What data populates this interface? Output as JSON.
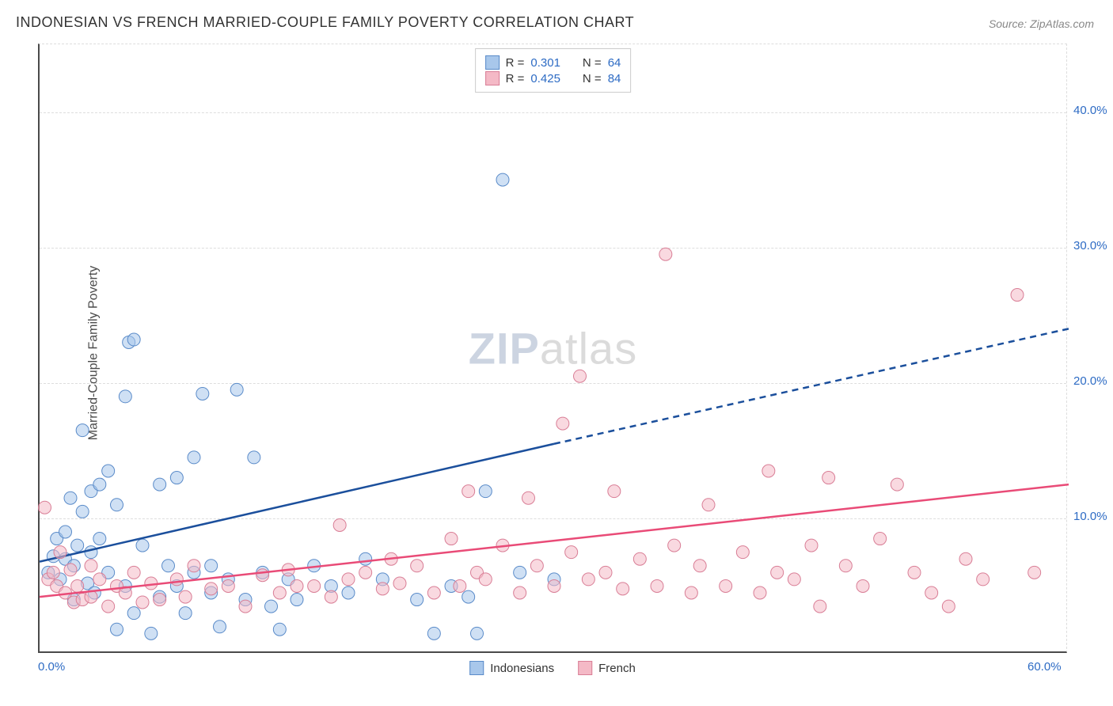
{
  "title": "INDONESIAN VS FRENCH MARRIED-COUPLE FAMILY POVERTY CORRELATION CHART",
  "source": "Source: ZipAtlas.com",
  "ylabel": "Married-Couple Family Poverty",
  "watermark_prefix": "ZIP",
  "watermark_suffix": "atlas",
  "legend_top": {
    "rows": [
      {
        "swatch_fill": "#a8c7eb",
        "swatch_stroke": "#5a8bc9",
        "r_label": "R =",
        "r_val": "0.301",
        "n_label": "N =",
        "n_val": "64"
      },
      {
        "swatch_fill": "#f4b9c6",
        "swatch_stroke": "#d97e96",
        "r_label": "R =",
        "r_val": "0.425",
        "n_label": "N =",
        "n_val": "84"
      }
    ]
  },
  "legend_bottom": {
    "items": [
      {
        "swatch_fill": "#a8c7eb",
        "swatch_stroke": "#5a8bc9",
        "label": "Indonesians"
      },
      {
        "swatch_fill": "#f4b9c6",
        "swatch_stroke": "#d97e96",
        "label": "French"
      }
    ]
  },
  "chart": {
    "type": "scatter",
    "xlim": [
      0,
      60
    ],
    "ylim": [
      0,
      45
    ],
    "x_ticks": [
      0,
      60
    ],
    "x_tick_labels": [
      "0.0%",
      "60.0%"
    ],
    "y_ticks": [
      10,
      20,
      30,
      40
    ],
    "y_tick_labels": [
      "10.0%",
      "20.0%",
      "30.0%",
      "40.0%"
    ],
    "grid_color": "#dddddd",
    "background_color": "#ffffff",
    "marker_radius": 8,
    "marker_opacity": 0.55,
    "series": [
      {
        "name": "Indonesians",
        "fill": "#a8c7eb",
        "stroke": "#5a8bc9",
        "trend": {
          "color": "#1b4f9c",
          "width": 2.5,
          "solid_x": [
            0,
            30
          ],
          "solid_y": [
            6.8,
            15.5
          ],
          "dash_x": [
            30,
            60
          ],
          "dash_y": [
            15.5,
            24.0
          ]
        },
        "points": [
          [
            0.5,
            6.0
          ],
          [
            0.8,
            7.2
          ],
          [
            1.0,
            8.5
          ],
          [
            1.2,
            5.5
          ],
          [
            1.5,
            7.0
          ],
          [
            1.5,
            9.0
          ],
          [
            1.8,
            11.5
          ],
          [
            2.0,
            6.5
          ],
          [
            2.0,
            4.0
          ],
          [
            2.2,
            8.0
          ],
          [
            2.5,
            10.5
          ],
          [
            2.5,
            16.5
          ],
          [
            2.8,
            5.2
          ],
          [
            3.0,
            12.0
          ],
          [
            3.0,
            7.5
          ],
          [
            3.2,
            4.5
          ],
          [
            3.5,
            8.5
          ],
          [
            3.5,
            12.5
          ],
          [
            4.0,
            6.0
          ],
          [
            4.0,
            13.5
          ],
          [
            4.5,
            1.8
          ],
          [
            4.5,
            11.0
          ],
          [
            5.0,
            19.0
          ],
          [
            5.0,
            5.0
          ],
          [
            5.2,
            23.0
          ],
          [
            5.5,
            23.2
          ],
          [
            5.5,
            3.0
          ],
          [
            6.0,
            8.0
          ],
          [
            6.5,
            1.5
          ],
          [
            7.0,
            4.2
          ],
          [
            7.0,
            12.5
          ],
          [
            7.5,
            6.5
          ],
          [
            8.0,
            5.0
          ],
          [
            8.0,
            13.0
          ],
          [
            8.5,
            3.0
          ],
          [
            9.0,
            14.5
          ],
          [
            9.0,
            6.0
          ],
          [
            9.5,
            19.2
          ],
          [
            10.0,
            4.5
          ],
          [
            10.0,
            6.5
          ],
          [
            10.5,
            2.0
          ],
          [
            11.0,
            5.5
          ],
          [
            11.5,
            19.5
          ],
          [
            12.0,
            4.0
          ],
          [
            12.5,
            14.5
          ],
          [
            13.0,
            6.0
          ],
          [
            13.5,
            3.5
          ],
          [
            14.0,
            1.8
          ],
          [
            14.5,
            5.5
          ],
          [
            15.0,
            4.0
          ],
          [
            16.0,
            6.5
          ],
          [
            17.0,
            5.0
          ],
          [
            18.0,
            4.5
          ],
          [
            19.0,
            7.0
          ],
          [
            20.0,
            5.5
          ],
          [
            22.0,
            4.0
          ],
          [
            23.0,
            1.5
          ],
          [
            24.0,
            5.0
          ],
          [
            25.0,
            4.2
          ],
          [
            26.0,
            12.0
          ],
          [
            27.0,
            35.0
          ],
          [
            28.0,
            6.0
          ],
          [
            30.0,
            5.5
          ],
          [
            25.5,
            1.5
          ]
        ]
      },
      {
        "name": "French",
        "fill": "#f4b9c6",
        "stroke": "#d97e96",
        "trend": {
          "color": "#e94b77",
          "width": 2.5,
          "solid_x": [
            0,
            60
          ],
          "solid_y": [
            4.2,
            12.5
          ],
          "dash_x": null,
          "dash_y": null
        },
        "points": [
          [
            0.3,
            10.8
          ],
          [
            0.5,
            5.5
          ],
          [
            0.8,
            6.0
          ],
          [
            1.0,
            5.0
          ],
          [
            1.2,
            7.5
          ],
          [
            1.5,
            4.5
          ],
          [
            1.8,
            6.2
          ],
          [
            2.0,
            3.8
          ],
          [
            2.2,
            5.0
          ],
          [
            2.5,
            4.0
          ],
          [
            3.0,
            6.5
          ],
          [
            3.0,
            4.2
          ],
          [
            3.5,
            5.5
          ],
          [
            4.0,
            3.5
          ],
          [
            4.5,
            5.0
          ],
          [
            5.0,
            4.5
          ],
          [
            5.5,
            6.0
          ],
          [
            6.0,
            3.8
          ],
          [
            6.5,
            5.2
          ],
          [
            7.0,
            4.0
          ],
          [
            8.0,
            5.5
          ],
          [
            8.5,
            4.2
          ],
          [
            9.0,
            6.5
          ],
          [
            10.0,
            4.8
          ],
          [
            11.0,
            5.0
          ],
          [
            12.0,
            3.5
          ],
          [
            13.0,
            5.8
          ],
          [
            14.0,
            4.5
          ],
          [
            14.5,
            6.2
          ],
          [
            15.0,
            5.0
          ],
          [
            16.0,
            5.0
          ],
          [
            17.0,
            4.2
          ],
          [
            17.5,
            9.5
          ],
          [
            18.0,
            5.5
          ],
          [
            19.0,
            6.0
          ],
          [
            20.0,
            4.8
          ],
          [
            20.5,
            7.0
          ],
          [
            21.0,
            5.2
          ],
          [
            22.0,
            6.5
          ],
          [
            23.0,
            4.5
          ],
          [
            24.0,
            8.5
          ],
          [
            24.5,
            5.0
          ],
          [
            25.0,
            12.0
          ],
          [
            25.5,
            6.0
          ],
          [
            26.0,
            5.5
          ],
          [
            27.0,
            8.0
          ],
          [
            28.0,
            4.5
          ],
          [
            28.5,
            11.5
          ],
          [
            29.0,
            6.5
          ],
          [
            30.0,
            5.0
          ],
          [
            30.5,
            17.0
          ],
          [
            31.0,
            7.5
          ],
          [
            31.5,
            20.5
          ],
          [
            32.0,
            5.5
          ],
          [
            33.0,
            6.0
          ],
          [
            33.5,
            12.0
          ],
          [
            34.0,
            4.8
          ],
          [
            35.0,
            7.0
          ],
          [
            36.0,
            5.0
          ],
          [
            36.5,
            29.5
          ],
          [
            37.0,
            8.0
          ],
          [
            38.0,
            4.5
          ],
          [
            38.5,
            6.5
          ],
          [
            39.0,
            11.0
          ],
          [
            40.0,
            5.0
          ],
          [
            41.0,
            7.5
          ],
          [
            42.0,
            4.5
          ],
          [
            42.5,
            13.5
          ],
          [
            43.0,
            6.0
          ],
          [
            44.0,
            5.5
          ],
          [
            45.0,
            8.0
          ],
          [
            45.5,
            3.5
          ],
          [
            46.0,
            13.0
          ],
          [
            47.0,
            6.5
          ],
          [
            48.0,
            5.0
          ],
          [
            49.0,
            8.5
          ],
          [
            50.0,
            12.5
          ],
          [
            51.0,
            6.0
          ],
          [
            52.0,
            4.5
          ],
          [
            53.0,
            3.5
          ],
          [
            54.0,
            7.0
          ],
          [
            55.0,
            5.5
          ],
          [
            57.0,
            26.5
          ],
          [
            58.0,
            6.0
          ]
        ]
      }
    ]
  }
}
